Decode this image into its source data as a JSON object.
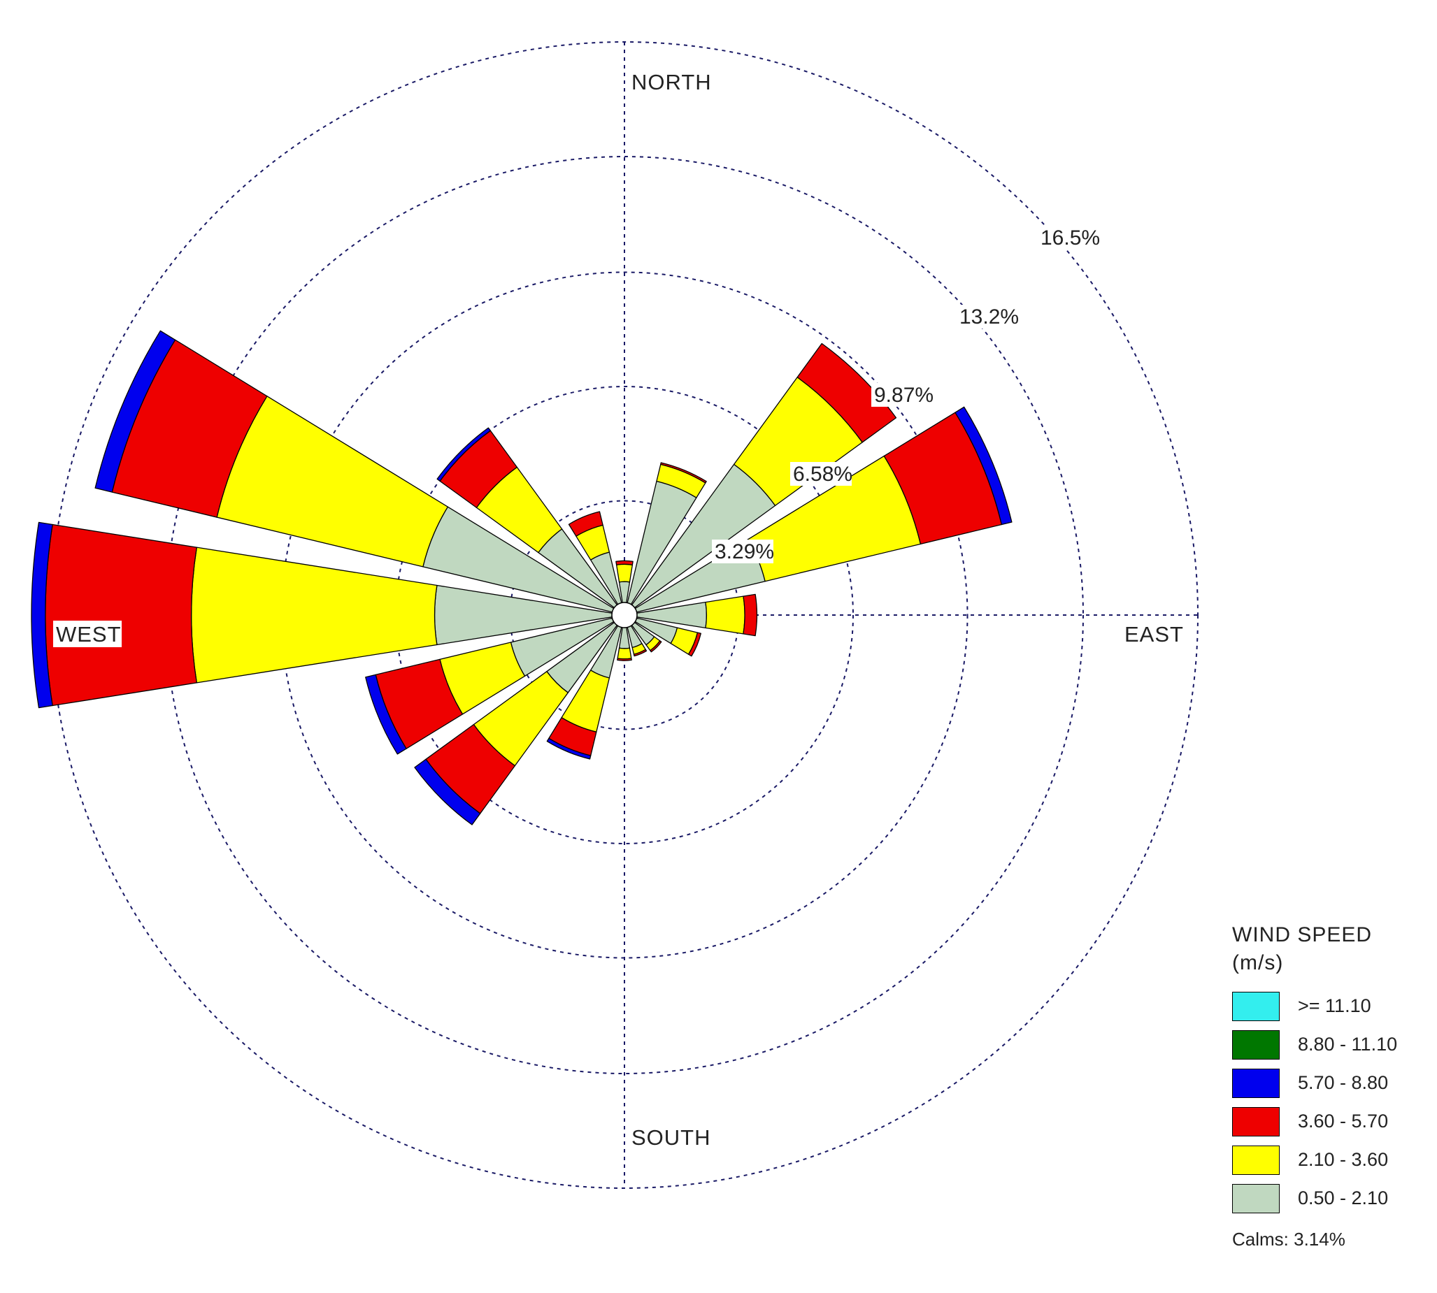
{
  "chart_data": {
    "type": "wind-rose",
    "title": "",
    "direction_labels": {
      "north": "NORTH",
      "east": "EAST",
      "south": "SOUTH",
      "west": "WEST"
    },
    "ring_values": [
      3.29,
      6.58,
      9.87,
      13.2,
      16.5
    ],
    "ring_labels": [
      "3.29%",
      "6.58%",
      "9.87%",
      "13.2%",
      "16.5%"
    ],
    "rmax": 16.5,
    "legend": {
      "title_line1": "WIND SPEED",
      "title_line2": "(m/s)",
      "bins": [
        {
          "label": ">= 11.10",
          "color": "#33eeee"
        },
        {
          "label": "8.80 - 11.10",
          "color": "#007700"
        },
        {
          "label": "5.70 - 8.80",
          "color": "#0000ee"
        },
        {
          "label": "3.60 - 5.70",
          "color": "#ee0000"
        },
        {
          "label": "2.10 - 3.60",
          "color": "#ffff00"
        },
        {
          "label": "0.50 - 2.10",
          "color": "#c0d8c0"
        }
      ],
      "calms": "Calms: 3.14%"
    },
    "stack_order": [
      "0.50 - 2.10",
      "2.10 - 3.60",
      "3.60 - 5.70",
      "5.70 - 8.80",
      "8.80 - 11.10",
      ">= 11.10"
    ],
    "sectors": [
      {
        "dir": 0,
        "values": [
          0.6,
          0.5,
          0.1,
          0,
          0,
          0
        ]
      },
      {
        "dir": 22.5,
        "values": [
          3.6,
          0.5,
          0.05,
          0,
          0,
          0
        ]
      },
      {
        "dir": 45,
        "values": [
          5.0,
          3.1,
          1.2,
          0,
          0,
          0
        ]
      },
      {
        "dir": 67.5,
        "values": [
          3.8,
          4.6,
          2.4,
          0.3,
          0,
          0
        ]
      },
      {
        "dir": 90,
        "values": [
          2.0,
          1.1,
          0.35,
          0,
          0,
          0
        ]
      },
      {
        "dir": 112.5,
        "values": [
          1.2,
          0.6,
          0.1,
          0,
          0,
          0
        ]
      },
      {
        "dir": 135,
        "values": [
          0.7,
          0.2,
          0.05,
          0,
          0,
          0
        ]
      },
      {
        "dir": 157.5,
        "values": [
          0.6,
          0.2,
          0.05,
          0,
          0,
          0
        ]
      },
      {
        "dir": 180,
        "values": [
          0.6,
          0.3,
          0.05,
          0,
          0,
          0
        ]
      },
      {
        "dir": 202.5,
        "values": [
          1.5,
          1.6,
          0.7,
          0.1,
          0,
          0
        ]
      },
      {
        "dir": 225,
        "values": [
          2.4,
          2.6,
          1.7,
          0.4,
          0,
          0
        ]
      },
      {
        "dir": 247.5,
        "values": [
          3.0,
          2.1,
          1.9,
          0.3,
          0,
          0
        ]
      },
      {
        "dir": 270,
        "values": [
          5.1,
          7.0,
          4.2,
          0.4,
          0,
          0
        ]
      },
      {
        "dir": 292.5,
        "values": [
          5.6,
          6.1,
          3.1,
          0.5,
          0,
          0
        ]
      },
      {
        "dir": 315,
        "values": [
          2.7,
          2.2,
          1.3,
          0.1,
          0,
          0
        ]
      },
      {
        "dir": 337.5,
        "values": [
          1.5,
          0.8,
          0.4,
          0,
          0,
          0
        ]
      }
    ],
    "sector_width_deg": 18
  }
}
